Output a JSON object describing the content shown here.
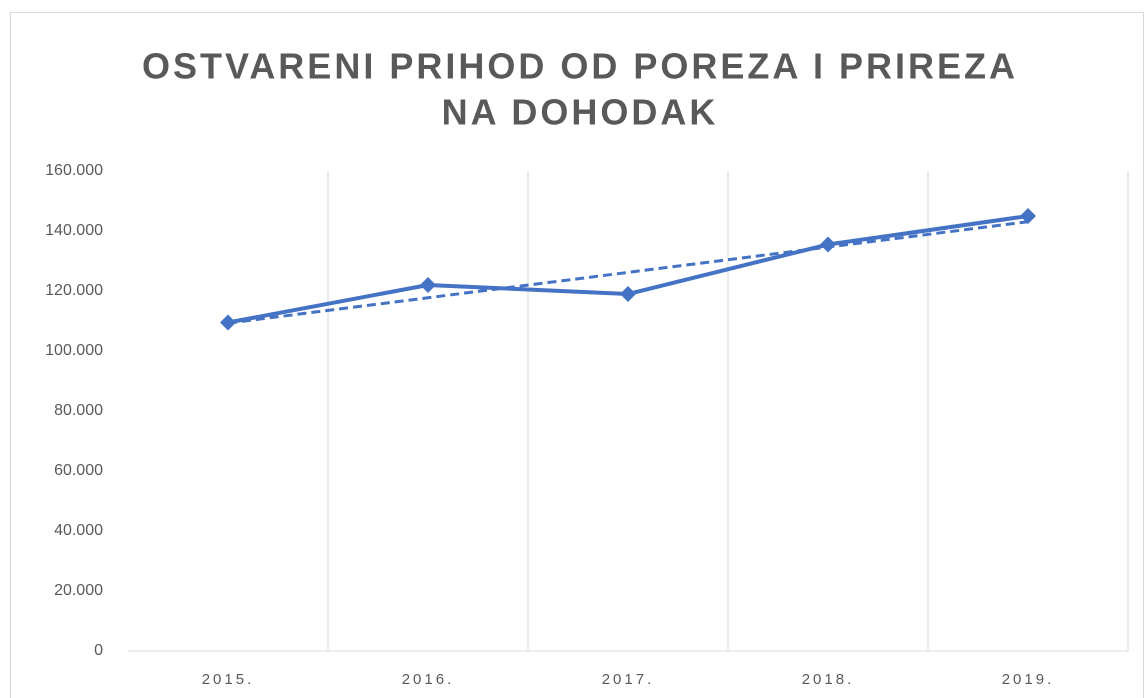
{
  "chart_data": {
    "type": "line",
    "title": [
      "OSTVARENI PRIHOD OD POREZA I PRIREZA",
      "NA DOHODAK"
    ],
    "categories": [
      "2015.",
      "2016.",
      "2017.",
      "2018.",
      "2019."
    ],
    "series": [
      {
        "color": "#4472c4",
        "marker": "diamond",
        "values": [
          109500,
          122000,
          119000,
          135500,
          145000
        ]
      },
      {
        "color": "#4472c4",
        "dashed": true,
        "values": [
          109300,
          117750,
          126200,
          134650,
          143100
        ]
      }
    ],
    "ylim": [
      0,
      160000
    ],
    "yticks": [
      0,
      {
        "value": 20000,
        "label": "20.000"
      },
      {
        "value": 40000,
        "label": "40.000"
      },
      {
        "value": 60000,
        "label": "60.000"
      },
      {
        "value": 80000,
        "label": "80.000"
      },
      {
        "value": 100000,
        "label": "100.000"
      },
      {
        "value": 120000,
        "label": "120.000"
      },
      {
        "value": 140000,
        "label": "140.000"
      },
      {
        "value": 160000,
        "label": "160.000"
      }
    ],
    "grid": "x"
  }
}
